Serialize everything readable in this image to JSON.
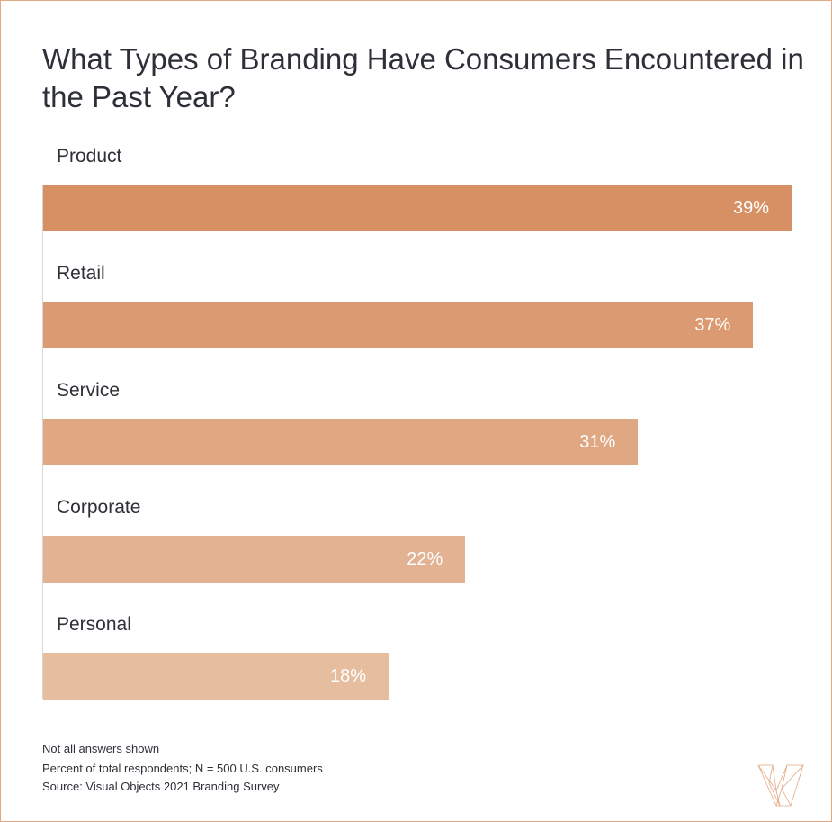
{
  "chart_data": {
    "type": "bar",
    "orientation": "horizontal",
    "title": "What Types of Branding Have Consumers Encountered in the Past Year?",
    "categories": [
      "Product",
      "Retail",
      "Service",
      "Corporate",
      "Personal"
    ],
    "values": [
      39,
      37,
      31,
      22,
      18
    ],
    "value_labels": [
      "39%",
      "37%",
      "31%",
      "22%",
      "18%"
    ],
    "colors": [
      "#d79063",
      "#db9a71",
      "#e0a882",
      "#e3b292",
      "#e6bd9f"
    ],
    "xlim": [
      0,
      39
    ],
    "grid": false,
    "legend": "none"
  },
  "notes": [
    "Not all answers shown",
    "Percent of total respondents; N = 500 U.S. consumers",
    "Source: Visual Objects 2021 Branding Survey"
  ],
  "logo": {
    "icon": "visual-objects-v-logo",
    "color": "#e2a882"
  },
  "border_color": "#e2a882"
}
